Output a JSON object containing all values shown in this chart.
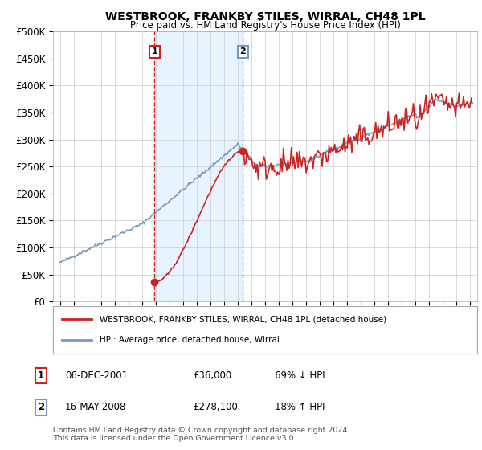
{
  "title": "WESTBROOK, FRANKBY STILES, WIRRAL, CH48 1PL",
  "subtitle": "Price paid vs. HM Land Registry's House Price Index (HPI)",
  "ylim": [
    0,
    500000
  ],
  "yticks": [
    0,
    50000,
    100000,
    150000,
    200000,
    250000,
    300000,
    350000,
    400000,
    450000,
    500000
  ],
  "ytick_labels": [
    "£0",
    "£50K",
    "£100K",
    "£150K",
    "£200K",
    "£250K",
    "£300K",
    "£350K",
    "£400K",
    "£450K",
    "£500K"
  ],
  "xlim_start": 1994.5,
  "xlim_end": 2025.5,
  "hpi_color": "#7799bb",
  "price_color": "#cc2222",
  "marker1_date": 2001.92,
  "marker1_price": 36000,
  "marker2_date": 2008.37,
  "marker2_price": 278100,
  "vline1_color": "#cc2222",
  "vline2_color": "#7799bb",
  "shade_color": "#ddeeff",
  "legend_line1": "WESTBROOK, FRANKBY STILES, WIRRAL, CH48 1PL (detached house)",
  "legend_line2": "HPI: Average price, detached house, Wirral",
  "table_row1_num": "1",
  "table_row1_date": "06-DEC-2001",
  "table_row1_price": "£36,000",
  "table_row1_pct": "69% ↓ HPI",
  "table_row2_num": "2",
  "table_row2_date": "16-MAY-2008",
  "table_row2_price": "£278,100",
  "table_row2_pct": "18% ↑ HPI",
  "footer": "Contains HM Land Registry data © Crown copyright and database right 2024.\nThis data is licensed under the Open Government Licence v3.0.",
  "bg_color": "#ffffff"
}
